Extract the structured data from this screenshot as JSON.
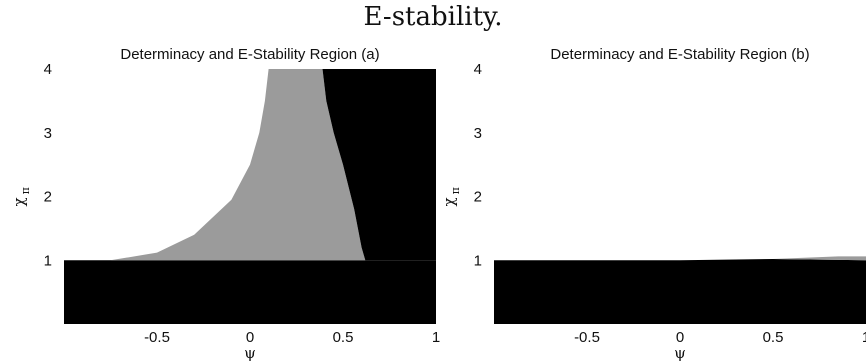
{
  "page": {
    "title": "E-stability."
  },
  "colors": {
    "black_region": "#000000",
    "gray_region": "#9b9b9b",
    "white_region": "#ffffff"
  },
  "chart_data": [
    {
      "type": "heatmap",
      "title": "Determinacy and E-Stability Region (a)",
      "xlabel": "ψ",
      "ylabel": "χ",
      "ylabel_subscript": "π",
      "xlim": [
        -1,
        1
      ],
      "ylim": [
        0,
        4
      ],
      "xticks": [
        "-0.5",
        "0",
        "0.5",
        "1"
      ],
      "xtick_values": [
        -0.5,
        0,
        0.5,
        1
      ],
      "yticks": [
        "1",
        "2",
        "3",
        "4"
      ],
      "ytick_values": [
        1,
        2,
        3,
        4
      ],
      "regions": [
        {
          "color": "black",
          "description": "lower band",
          "polygon": [
            [
              -1,
              0
            ],
            [
              1,
              0
            ],
            [
              1,
              1
            ],
            [
              -1,
              1
            ]
          ]
        },
        {
          "color": "gray",
          "description": "curved wedge",
          "polygon": [
            [
              -0.75,
              1
            ],
            [
              -0.5,
              1.12
            ],
            [
              -0.3,
              1.4
            ],
            [
              -0.1,
              1.95
            ],
            [
              0.0,
              2.5
            ],
            [
              0.05,
              3.0
            ],
            [
              0.08,
              3.5
            ],
            [
              0.1,
              4.0
            ],
            [
              0.39,
              4.0
            ],
            [
              0.41,
              3.5
            ],
            [
              0.45,
              3.0
            ],
            [
              0.5,
              2.5
            ],
            [
              0.56,
              1.8
            ],
            [
              0.58,
              1.5
            ],
            [
              0.6,
              1.2
            ],
            [
              0.62,
              1.0
            ]
          ]
        },
        {
          "color": "black",
          "description": "right region",
          "polygon": [
            [
              0.39,
              4.0
            ],
            [
              1,
              4.0
            ],
            [
              1,
              1.0
            ],
            [
              0.62,
              1.0
            ],
            [
              0.6,
              1.2
            ],
            [
              0.58,
              1.5
            ],
            [
              0.56,
              1.8
            ],
            [
              0.5,
              2.5
            ],
            [
              0.45,
              3.0
            ],
            [
              0.41,
              3.5
            ]
          ]
        }
      ]
    },
    {
      "type": "heatmap",
      "title": "Determinacy and E-Stability Region (b)",
      "xlabel": "ψ",
      "ylabel": "χ",
      "ylabel_subscript": "π",
      "xlim": [
        -1,
        1
      ],
      "ylim": [
        0,
        4
      ],
      "xticks": [
        "-0.5",
        "0",
        "0.5",
        "1"
      ],
      "xtick_values": [
        -0.5,
        0,
        0.5,
        1
      ],
      "yticks": [
        "1",
        "2",
        "3",
        "4"
      ],
      "ytick_values": [
        1,
        2,
        3,
        4
      ],
      "regions": [
        {
          "color": "black",
          "description": "lower band",
          "polygon": [
            [
              -1,
              0
            ],
            [
              1,
              0
            ],
            [
              1,
              1.0
            ],
            [
              0.5,
              1.02
            ],
            [
              0,
              1.0
            ],
            [
              -1,
              1.0
            ]
          ]
        },
        {
          "color": "gray",
          "description": "thin sliver",
          "polygon": [
            [
              0.5,
              1.02
            ],
            [
              1,
              1.0
            ],
            [
              1,
              1.06
            ],
            [
              0.85,
              1.06
            ]
          ]
        }
      ]
    }
  ]
}
